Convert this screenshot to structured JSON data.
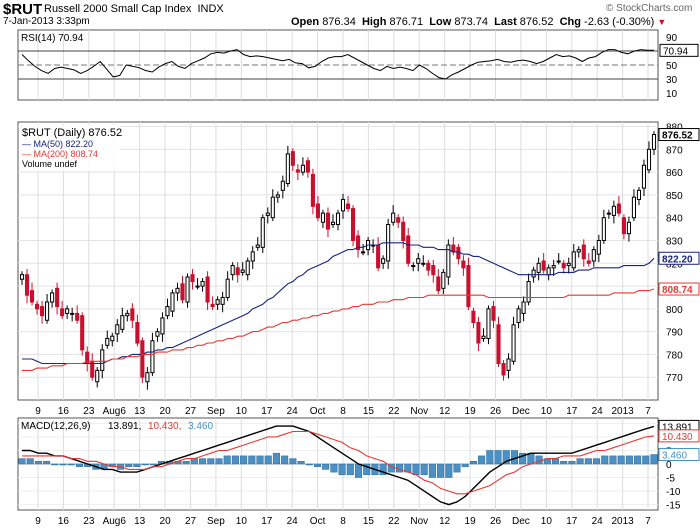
{
  "header": {
    "symbol": "$RUT",
    "name": "Russell 2000 Small Cap Index",
    "exchange": "INDX",
    "date": "7-Jan-2013 3:33pm",
    "open_label": "Open",
    "open": "876.34",
    "high_label": "High",
    "high": "876.71",
    "low_label": "Low",
    "low": "873.74",
    "last_label": "Last",
    "last": "876.52",
    "chg_label": "Chg",
    "chg": "-2.63 (-0.30%)",
    "watermark": "© StockCharts.com"
  },
  "colors": {
    "up": "#000000",
    "down": "#c8102e",
    "ma50": "#1a237e",
    "ma200": "#e53935",
    "macd_line": "#000000",
    "signal": "#e53935",
    "hist": "#4a90c4"
  },
  "chart_data": [
    {
      "type": "line",
      "panel": "RSI",
      "title": "RSI(14) 70.94",
      "ylim": [
        0,
        100
      ],
      "ticks": [
        "90",
        "70",
        "50",
        "30",
        "10"
      ],
      "reference_lines": [
        70,
        50,
        30
      ],
      "last_label": "70.94",
      "series": [
        {
          "name": "RSI(14)",
          "values": [
            65,
            56,
            48,
            42,
            38,
            45,
            47,
            45,
            43,
            38,
            42,
            48,
            55,
            44,
            33,
            35,
            50,
            48,
            46,
            42,
            40,
            47,
            52,
            55,
            48,
            45,
            52,
            56,
            60,
            66,
            68,
            67,
            70,
            72,
            65,
            62,
            63,
            62,
            60,
            58,
            56,
            58,
            53,
            52,
            46,
            48,
            55,
            60,
            62,
            62,
            65,
            60,
            55,
            50,
            45,
            42,
            48,
            45,
            47,
            45,
            42,
            50,
            45,
            38,
            32,
            30,
            36,
            40,
            45,
            50,
            54,
            55,
            56,
            58,
            55,
            54,
            56,
            57,
            55,
            52,
            55,
            60,
            65,
            62,
            63,
            60,
            55,
            60,
            62,
            68,
            72,
            72,
            68,
            66,
            70,
            72,
            71,
            70.94
          ]
        }
      ]
    },
    {
      "type": "candlestick",
      "panel": "price",
      "title": "$RUT (Daily) 876.52",
      "ylim": [
        760,
        882
      ],
      "y_ticks": [
        770,
        780,
        790,
        800,
        810,
        820,
        830,
        840,
        850,
        860,
        870,
        880
      ],
      "x_tick_labels": [
        "9",
        "16",
        "23",
        "Aug6",
        "13",
        "20",
        "27",
        "Sep",
        "10",
        "17",
        "24",
        "Oct",
        "8",
        "15",
        "22",
        "Nov",
        "12",
        "19",
        "26",
        "Dec",
        "10",
        "17",
        "24",
        "2013",
        "7"
      ],
      "legend": [
        "$RUT (Daily) 876.52",
        "MA(50) 822.20",
        "MA(200) 808.74",
        "Volume undef"
      ],
      "price_labels": {
        "last": "876.52",
        "ma50": "822.20",
        "ma200": "808.74"
      },
      "close": [
        815,
        806,
        803,
        800,
        797,
        803,
        807,
        801,
        797,
        800,
        798,
        795,
        782,
        776,
        770,
        773,
        782,
        787,
        788,
        793,
        797,
        798,
        795,
        785,
        770,
        772,
        786,
        790,
        796,
        801,
        807,
        809,
        804,
        814,
        812,
        810,
        812,
        803,
        801,
        804,
        805,
        813,
        819,
        815,
        817,
        821,
        825,
        828,
        840,
        842,
        849,
        850,
        856,
        868,
        863,
        860,
        863,
        860,
        845,
        840,
        842,
        835,
        838,
        842,
        848,
        844,
        830,
        826,
        825,
        830,
        828,
        818,
        822,
        837,
        842,
        838,
        830,
        820,
        819,
        822,
        820,
        817,
        815,
        808,
        816,
        828,
        825,
        822,
        818,
        801,
        794,
        785,
        788,
        800,
        795,
        776,
        771,
        778,
        793,
        800,
        803,
        812,
        817,
        820,
        817,
        818,
        819,
        821,
        818,
        820,
        825,
        826,
        822,
        820,
        826,
        830,
        840,
        842,
        845,
        842,
        833,
        838,
        849,
        852,
        863,
        870,
        876.5
      ],
      "ma50": [
        778,
        778,
        778,
        777,
        776,
        776,
        776,
        776,
        776,
        776,
        776,
        776,
        776,
        776,
        776,
        776,
        776,
        777,
        778,
        778,
        779,
        779,
        780,
        780,
        780,
        781,
        781,
        782,
        782,
        783,
        783,
        784,
        785,
        786,
        787,
        788,
        789,
        790,
        791,
        792,
        793,
        794,
        795,
        796,
        797,
        798,
        800,
        801,
        802,
        804,
        805,
        807,
        809,
        811,
        812,
        814,
        815,
        817,
        818,
        819,
        820,
        821,
        823,
        824,
        825,
        826,
        826,
        827,
        827,
        828,
        828,
        828,
        829,
        829,
        829,
        829,
        829,
        828,
        828,
        828,
        827,
        827,
        827,
        826,
        826,
        826,
        825,
        825,
        824,
        824,
        823,
        823,
        822,
        821,
        820,
        819,
        818,
        817,
        816,
        815,
        815,
        815,
        815,
        815,
        815,
        815,
        815,
        816,
        816,
        816,
        816,
        817,
        817,
        817,
        818,
        818,
        818,
        818,
        818,
        818,
        819,
        819,
        819,
        819,
        819,
        820,
        822.2
      ],
      "ma200": [
        773,
        773,
        773,
        774,
        774,
        774,
        775,
        775,
        775,
        776,
        776,
        776,
        776,
        777,
        777,
        777,
        777,
        777,
        778,
        778,
        778,
        779,
        779,
        779,
        780,
        780,
        780,
        781,
        781,
        781,
        782,
        782,
        782,
        783,
        783,
        784,
        784,
        785,
        785,
        786,
        786,
        787,
        787,
        788,
        788,
        789,
        790,
        790,
        791,
        792,
        792,
        793,
        794,
        794,
        795,
        795,
        796,
        796,
        797,
        797,
        798,
        798,
        799,
        799,
        800,
        800,
        801,
        801,
        802,
        802,
        802,
        803,
        803,
        803,
        804,
        804,
        804,
        805,
        805,
        805,
        805,
        806,
        806,
        806,
        806,
        806,
        806,
        806,
        806,
        806,
        806,
        806,
        806,
        805,
        805,
        805,
        805,
        805,
        805,
        805,
        805,
        805,
        805,
        805,
        805,
        805,
        805,
        805,
        805,
        806,
        806,
        806,
        806,
        806,
        806,
        806,
        806,
        806,
        807,
        807,
        807,
        807,
        807,
        808,
        808,
        808,
        808.7
      ]
    },
    {
      "type": "line",
      "panel": "MACD",
      "title": "MACD(12,26,9) 13.891, 10.430, 3.460",
      "ylim": [
        -17,
        17
      ],
      "y_ticks": [
        "15",
        "10",
        "5",
        "0",
        "-5",
        "-10",
        "-15"
      ],
      "value_labels": {
        "macd": "13.891",
        "signal": "10.430",
        "hist": "3.460"
      },
      "x_tick_labels": [
        "9",
        "16",
        "23",
        "Aug6",
        "13",
        "20",
        "27",
        "Sep",
        "10",
        "17",
        "24",
        "Oct",
        "8",
        "15",
        "22",
        "Nov",
        "12",
        "19",
        "26",
        "Dec",
        "10",
        "17",
        "24",
        "2013",
        "7"
      ],
      "series": [
        {
          "name": "MACD(12,26,9)",
          "values": [
            5,
            5,
            4,
            4,
            3,
            3,
            2,
            1,
            0,
            -1,
            -2,
            -2,
            -3,
            -3,
            -3,
            -2,
            -1,
            0,
            1,
            2,
            3,
            4,
            5,
            6,
            7,
            8,
            9,
            10,
            11,
            12,
            13,
            14,
            14,
            14,
            13,
            12,
            10,
            8,
            6,
            4,
            2,
            0,
            -1,
            -2,
            -3,
            -4,
            -5,
            -6,
            -8,
            -10,
            -12,
            -14,
            -15,
            -14,
            -12,
            -9,
            -6,
            -3,
            -1,
            1,
            2,
            3,
            4,
            4,
            4,
            4,
            4,
            4,
            5,
            6,
            7,
            8,
            9,
            10,
            11,
            12,
            13,
            13.9
          ]
        },
        {
          "name": "Signal",
          "values": [
            3,
            3,
            3,
            3,
            3,
            3,
            2,
            2,
            1,
            1,
            0,
            -1,
            -1,
            -2,
            -2,
            -2,
            -1,
            -1,
            0,
            1,
            2,
            2,
            3,
            4,
            5,
            5,
            6,
            7,
            8,
            9,
            10,
            10,
            11,
            12,
            12,
            12,
            11,
            10,
            9,
            8,
            6,
            5,
            3,
            2,
            1,
            -1,
            -2,
            -3,
            -4,
            -6,
            -7,
            -9,
            -10,
            -11,
            -11,
            -10,
            -9,
            -8,
            -6,
            -4,
            -3,
            -1,
            0,
            1,
            2,
            2,
            3,
            3,
            3,
            4,
            5,
            5,
            6,
            7,
            8,
            9,
            10,
            10.4
          ]
        },
        {
          "name": "Histogram",
          "values": [
            2,
            2,
            1,
            1,
            0,
            0,
            0,
            -1,
            -1,
            -2,
            -2,
            -1,
            -2,
            -1,
            -1,
            0,
            0,
            1,
            1,
            1,
            1,
            2,
            2,
            2,
            2,
            3,
            3,
            3,
            3,
            3,
            3,
            4,
            3,
            2,
            1,
            0,
            -1,
            -2,
            -3,
            -4,
            -4,
            -5,
            -4,
            -4,
            -4,
            -3,
            -3,
            -3,
            -4,
            -4,
            -5,
            -5,
            -5,
            -3,
            -1,
            1,
            3,
            5,
            5,
            5,
            5,
            4,
            4,
            3,
            2,
            2,
            1,
            1,
            2,
            2,
            2,
            3,
            3,
            3,
            3,
            3,
            3,
            3.5
          ]
        }
      ]
    }
  ]
}
